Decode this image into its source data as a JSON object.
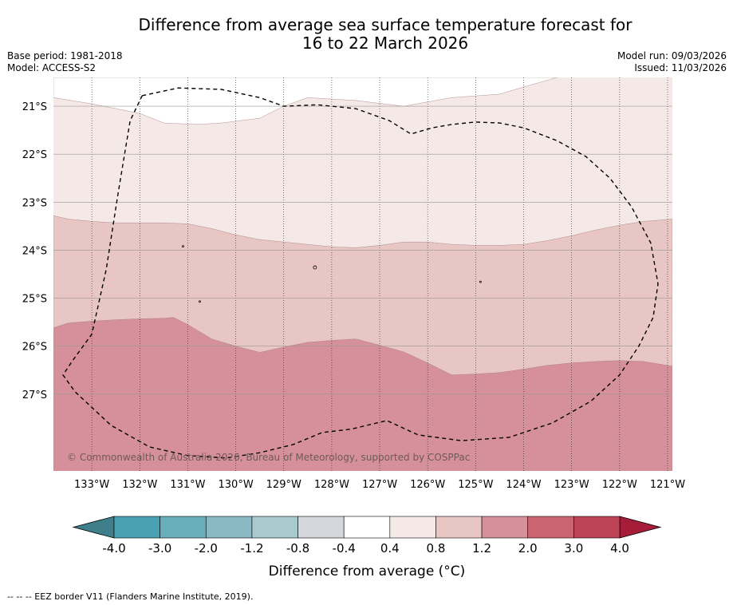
{
  "chart_data": {
    "type": "heatmap",
    "title_line1": "Difference from average sea surface temperature forecast for",
    "title_line2": "16 to 22 March 2026",
    "base_period": "Base period: 1981-2018",
    "model": "Model: ACCESS-S2",
    "model_run": "Model run: 09/03/2026",
    "issued": "Issued: 11/03/2026",
    "copyright": "© Commonwealth of Australia 2026, Bureau of Meteorology, supported by COSPPac",
    "lon_range": [
      -133.8,
      -120.9
    ],
    "lat_range": [
      -28.6,
      -20.4
    ],
    "lon_ticks": [
      {
        "value": -133,
        "label": "133°W"
      },
      {
        "value": -132,
        "label": "132°W"
      },
      {
        "value": -131,
        "label": "131°W"
      },
      {
        "value": -130,
        "label": "130°W"
      },
      {
        "value": -129,
        "label": "129°W"
      },
      {
        "value": -128,
        "label": "128°W"
      },
      {
        "value": -127,
        "label": "127°W"
      },
      {
        "value": -126,
        "label": "126°W"
      },
      {
        "value": -125,
        "label": "125°W"
      },
      {
        "value": -124,
        "label": "124°W"
      },
      {
        "value": -123,
        "label": "123°W"
      },
      {
        "value": -122,
        "label": "122°W"
      },
      {
        "value": -121,
        "label": "121°W"
      }
    ],
    "lat_ticks": [
      {
        "value": -21,
        "label": "21°S"
      },
      {
        "value": -22,
        "label": "22°S"
      },
      {
        "value": -23,
        "label": "23°S"
      },
      {
        "value": -24,
        "label": "24°S"
      },
      {
        "value": -25,
        "label": "25°S"
      },
      {
        "value": -26,
        "label": "26°S"
      },
      {
        "value": -27,
        "label": "27°S"
      }
    ],
    "zones": [
      {
        "range": "0.8 to 1.2",
        "color": "#e7c6c3",
        "boundary": [
          [
            -133.8,
            -23.28
          ],
          [
            -133.5,
            -23.35
          ],
          [
            -133,
            -23.4
          ],
          [
            -132.5,
            -23.43
          ],
          [
            -132,
            -23.43
          ],
          [
            -131.5,
            -23.43
          ],
          [
            -131,
            -23.45
          ],
          [
            -130.5,
            -23.55
          ],
          [
            -130,
            -23.68
          ],
          [
            -129.5,
            -23.78
          ],
          [
            -129,
            -23.83
          ],
          [
            -128.5,
            -23.88
          ],
          [
            -128,
            -23.93
          ],
          [
            -127.5,
            -23.95
          ],
          [
            -127,
            -23.9
          ],
          [
            -126.5,
            -23.83
          ],
          [
            -126,
            -23.83
          ],
          [
            -125.5,
            -23.88
          ],
          [
            -125,
            -23.9
          ],
          [
            -124.5,
            -23.9
          ],
          [
            -124,
            -23.88
          ],
          [
            -123.5,
            -23.8
          ],
          [
            -123,
            -23.7
          ],
          [
            -122.5,
            -23.58
          ],
          [
            -122,
            -23.48
          ],
          [
            -121.5,
            -23.4
          ],
          [
            -120.9,
            -23.35
          ]
        ]
      },
      {
        "range": "1.2 to 2.0",
        "color": "#d5909a",
        "boundary": [
          [
            -133.8,
            -25.62
          ],
          [
            -133.5,
            -25.52
          ],
          [
            -133,
            -25.48
          ],
          [
            -132.5,
            -25.45
          ],
          [
            -132,
            -25.43
          ],
          [
            -131.5,
            -25.42
          ],
          [
            -131.3,
            -25.4
          ],
          [
            -131,
            -25.55
          ],
          [
            -130.5,
            -25.85
          ],
          [
            -130,
            -26.0
          ],
          [
            -129.5,
            -26.13
          ],
          [
            -129,
            -26.02
          ],
          [
            -128.5,
            -25.92
          ],
          [
            -128,
            -25.88
          ],
          [
            -127.5,
            -25.85
          ],
          [
            -127,
            -25.98
          ],
          [
            -126.5,
            -26.12
          ],
          [
            -126,
            -26.35
          ],
          [
            -125.5,
            -26.6
          ],
          [
            -125,
            -26.58
          ],
          [
            -124.5,
            -26.55
          ],
          [
            -124,
            -26.48
          ],
          [
            -123.5,
            -26.4
          ],
          [
            -123,
            -26.35
          ],
          [
            -122.5,
            -26.32
          ],
          [
            -122,
            -26.3
          ],
          [
            -121.5,
            -26.32
          ],
          [
            -120.9,
            -26.42
          ]
        ]
      }
    ],
    "top_zone": {
      "range": "0.4 to 0.8",
      "color": "#f5e9e8"
    },
    "white_patch": {
      "range": "-0.4 to 0.4",
      "color": "#ffffff",
      "boundary": [
        [
          -133.8,
          -20.4
        ],
        [
          -133.8,
          -20.82
        ],
        [
          -133,
          -20.95
        ],
        [
          -132.5,
          -21.05
        ],
        [
          -132,
          -21.15
        ],
        [
          -131.5,
          -21.35
        ],
        [
          -130.8,
          -21.38
        ],
        [
          -130.3,
          -21.35
        ],
        [
          -129.5,
          -21.25
        ],
        [
          -129,
          -21.0
        ],
        [
          -128.5,
          -20.82
        ],
        [
          -127.5,
          -20.88
        ],
        [
          -126.5,
          -21.0
        ],
        [
          -125.5,
          -20.82
        ],
        [
          -124.5,
          -20.75
        ],
        [
          -124,
          -20.6
        ],
        [
          -123.3,
          -20.4
        ]
      ]
    },
    "eez_border": [
      [
        -131.95,
        -20.78
      ],
      [
        -131.2,
        -20.62
      ],
      [
        -130.3,
        -20.65
      ],
      [
        -129.5,
        -20.82
      ],
      [
        -129,
        -21.0
      ],
      [
        -128.3,
        -20.97
      ],
      [
        -127.5,
        -21.05
      ],
      [
        -126.8,
        -21.3
      ],
      [
        -126.35,
        -21.58
      ],
      [
        -125.9,
        -21.45
      ],
      [
        -125.5,
        -21.38
      ],
      [
        -125,
        -21.33
      ],
      [
        -124.5,
        -21.35
      ],
      [
        -124,
        -21.45
      ],
      [
        -123.3,
        -21.72
      ],
      [
        -122.7,
        -22.05
      ],
      [
        -122.2,
        -22.5
      ],
      [
        -121.75,
        -23.1
      ],
      [
        -121.35,
        -23.85
      ],
      [
        -121.2,
        -24.7
      ],
      [
        -121.3,
        -25.4
      ],
      [
        -121.6,
        -26.0
      ],
      [
        -122.0,
        -26.6
      ],
      [
        -122.6,
        -27.15
      ],
      [
        -123.4,
        -27.6
      ],
      [
        -124.3,
        -27.9
      ],
      [
        -125.3,
        -27.97
      ],
      [
        -126.2,
        -27.85
      ],
      [
        -126.85,
        -27.55
      ],
      [
        -127.6,
        -27.73
      ],
      [
        -128.2,
        -27.8
      ],
      [
        -128.8,
        -28.05
      ],
      [
        -129.5,
        -28.22
      ],
      [
        -130.2,
        -28.33
      ],
      [
        -131.0,
        -28.28
      ],
      [
        -131.8,
        -28.1
      ],
      [
        -132.6,
        -27.65
      ],
      [
        -133.35,
        -26.95
      ],
      [
        -133.6,
        -26.6
      ],
      [
        -133.4,
        -26.3
      ],
      [
        -133.0,
        -25.75
      ],
      [
        -132.7,
        -24.4
      ],
      [
        -132.45,
        -22.8
      ],
      [
        -132.2,
        -21.3
      ],
      [
        -131.95,
        -20.78
      ]
    ],
    "islands": [
      [
        -128.35,
        -24.36
      ],
      [
        -130.75,
        -25.07
      ],
      [
        -131.1,
        -23.92
      ],
      [
        -124.9,
        -24.66
      ]
    ],
    "colorbar": {
      "xlabel": "Difference from average (°C)",
      "tick_labels": [
        "-4.0",
        "-3.0",
        "-2.0",
        "-1.2",
        "-0.8",
        "-0.4",
        "0.4",
        "0.8",
        "1.2",
        "2.0",
        "3.0",
        "4.0"
      ],
      "colors": [
        "#4aa1b1",
        "#6aadbb",
        "#8ab8c3",
        "#a8c9cd",
        "#d4d8dc",
        "#ffffff",
        "#f5e9e8",
        "#e7c6c3",
        "#d5909a",
        "#ca6570",
        "#bc4355"
      ],
      "under_color": "#3f7f8c",
      "over_color": "#a51d38"
    },
    "footer_note": "--  --  -- EEZ border V11 (Flanders Marine Institute, 2019)."
  }
}
